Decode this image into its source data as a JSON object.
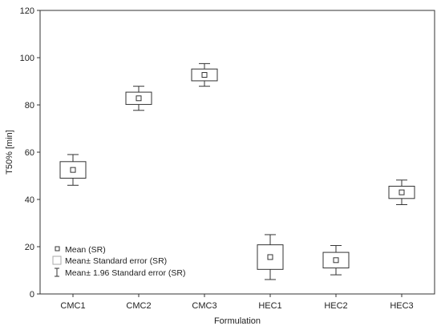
{
  "chart_data": {
    "type": "box",
    "title": "",
    "xlabel": "Formulation",
    "ylabel": "T50% [min]",
    "ylim": [
      0,
      120
    ],
    "yticks": [
      0,
      20,
      40,
      60,
      80,
      100,
      120
    ],
    "grid": false,
    "legend_position": "bottom-left",
    "categories": [
      "CMC1",
      "CMC2",
      "CMC3",
      "HEC1",
      "HEC2",
      "HEC3"
    ],
    "series": [
      {
        "name": "Mean (SR)",
        "values": [
          52.5,
          82.8,
          92.7,
          15.6,
          14.3,
          43.0
        ]
      },
      {
        "name": "Mean± Standard error (SR)",
        "low": [
          49.0,
          80.2,
          90.2,
          10.4,
          11.0,
          40.4
        ],
        "high": [
          56.0,
          85.4,
          95.2,
          20.8,
          17.6,
          45.6
        ]
      },
      {
        "name": "Mean± 1.96 Standard error (SR)",
        "low": [
          46.0,
          77.7,
          87.9,
          6.1,
          8.1,
          37.8
        ],
        "high": [
          59.0,
          87.9,
          97.5,
          25.1,
          20.5,
          48.2
        ]
      }
    ],
    "colors": {
      "stroke": "#333333",
      "background": "#ffffff"
    }
  }
}
